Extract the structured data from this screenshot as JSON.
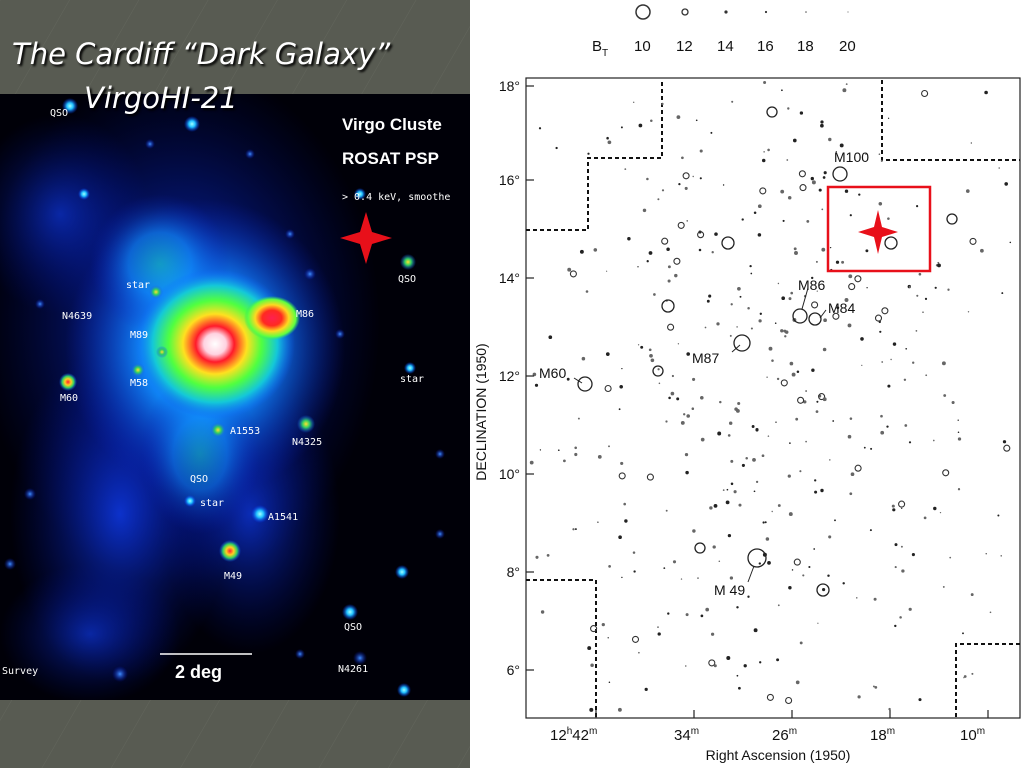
{
  "slide": {
    "title_line1": "The Cardiff “Dark Galaxy”",
    "title_line2": "VirgoHI-21"
  },
  "xray_image": {
    "header_line1": "Virgo Cluste",
    "header_line2": "ROSAT PSP",
    "header_line3": "> 0.4 keV, smoothe",
    "scale_label": "2 deg",
    "survey_label": "Survey",
    "marker_color": "#e8101a",
    "labels": {
      "qso_top": "QSO",
      "qso_right": "QSO",
      "qso_mid": "QSO",
      "qso_bottom": "QSO",
      "star_1": "star",
      "star_2": "star",
      "star_3": "star",
      "n4639": "N4639",
      "m89": "M89",
      "m86": "M86",
      "m60": "M60",
      "m58": "M58",
      "a1553": "A1553",
      "n4325": "N4325",
      "a1541": "A1541",
      "m49": "M49",
      "n4261": "N4261"
    }
  },
  "sky_chart": {
    "legend_title": "B",
    "legend_subscript": "T",
    "legend_values": [
      "10",
      "12",
      "14",
      "16",
      "18",
      "20"
    ],
    "y_axis_label": "DECLINATION (1950)",
    "x_axis_label": "Right Ascension (1950)",
    "y_ticks": [
      "18°",
      "16°",
      "14°",
      "12°",
      "10°",
      "8°",
      "6°"
    ],
    "x_ticks": [
      {
        "main": "12",
        "sup1": "h",
        "mid": "42",
        "sup2": "m"
      },
      {
        "main": "34",
        "sup1": "",
        "mid": "",
        "sup2": "m"
      },
      {
        "main": "26",
        "sup1": "",
        "mid": "",
        "sup2": "m"
      },
      {
        "main": "18",
        "sup1": "",
        "mid": "",
        "sup2": "m"
      },
      {
        "main": "10",
        "sup1": "",
        "mid": "",
        "sup2": "m"
      }
    ],
    "galaxy_labels": {
      "m100": "M100",
      "m86": "M86",
      "m84": "M84",
      "m87": "M87",
      "m60": "M60",
      "m49": "M 49"
    },
    "highlight_color": "#e8101a"
  }
}
